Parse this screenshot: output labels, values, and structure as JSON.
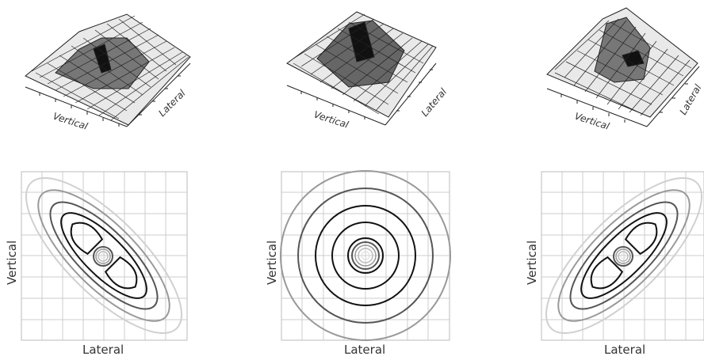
{
  "figure": {
    "panels": [
      {
        "id": "negative-correlation",
        "surface_labels": {
          "x": "Vertical",
          "y": "Lateral"
        },
        "contour_labels": {
          "x": "Lateral",
          "y": "Vertical"
        },
        "orientation": "anti-diagonal"
      },
      {
        "id": "isotropic",
        "surface_labels": {
          "x": "Vertical",
          "y": "Lateral"
        },
        "contour_labels": {
          "x": "Lateral",
          "y": "Vertical"
        },
        "orientation": "circular"
      },
      {
        "id": "positive-correlation",
        "surface_labels": {
          "x": "Vertical",
          "y": "Lateral"
        },
        "contour_labels": {
          "x": "Lateral",
          "y": "Vertical"
        },
        "orientation": "diagonal"
      }
    ],
    "colors": {
      "grid": "#cccccc",
      "frame": "#bbbbbb",
      "contour_dark": "#111111",
      "contour_mid": "#555555",
      "contour_light": "#999999",
      "contour_faint": "#d0d0d0",
      "surface_line": "#222222"
    }
  }
}
